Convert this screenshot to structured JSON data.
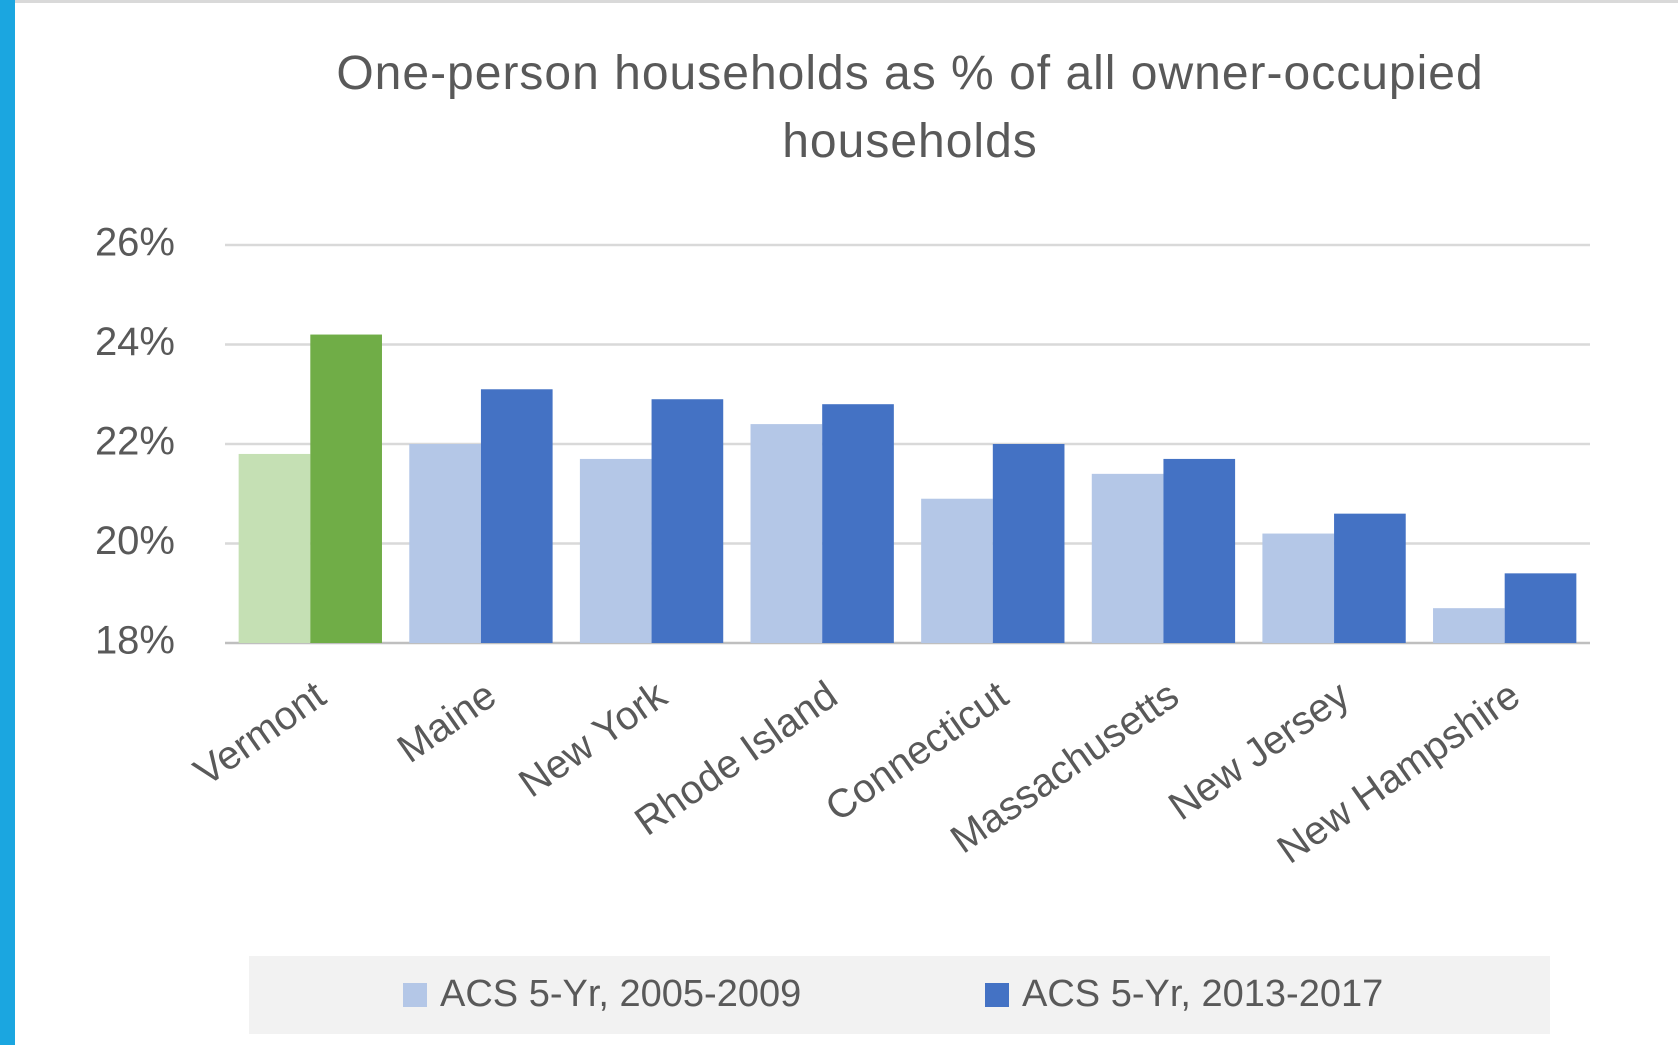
{
  "chart_data": {
    "type": "bar",
    "title": "One-person households as % of all owner-occupied households",
    "categories": [
      "Vermont",
      "Maine",
      "New York",
      "Rhode Island",
      "Connecticut",
      "Massachusetts",
      "New Jersey",
      "New Hampshire"
    ],
    "series": [
      {
        "name": "ACS 5-Yr, 2005-2009",
        "color": "#b4c7e7",
        "colors": [
          "#c5e0b4",
          "#b4c7e7",
          "#b4c7e7",
          "#b4c7e7",
          "#b4c7e7",
          "#b4c7e7",
          "#b4c7e7",
          "#b4c7e7"
        ],
        "values": [
          21.8,
          22.0,
          21.7,
          22.4,
          20.9,
          21.4,
          20.2,
          18.7
        ]
      },
      {
        "name": "ACS 5-Yr, 2013-2017",
        "color": "#4472c4",
        "colors": [
          "#70ad47",
          "#4472c4",
          "#4472c4",
          "#4472c4",
          "#4472c4",
          "#4472c4",
          "#4472c4",
          "#4472c4"
        ],
        "values": [
          24.2,
          23.1,
          22.9,
          22.8,
          22.0,
          21.7,
          20.6,
          19.4
        ]
      }
    ],
    "ylim": [
      18,
      26
    ],
    "yticks": [
      {
        "value": 18,
        "label": "18%"
      },
      {
        "value": 20,
        "label": "20%"
      },
      {
        "value": 22,
        "label": "22%"
      },
      {
        "value": 24,
        "label": "24%"
      },
      {
        "value": 26,
        "label": "26%"
      }
    ],
    "grid": true,
    "legend": "bottom"
  }
}
